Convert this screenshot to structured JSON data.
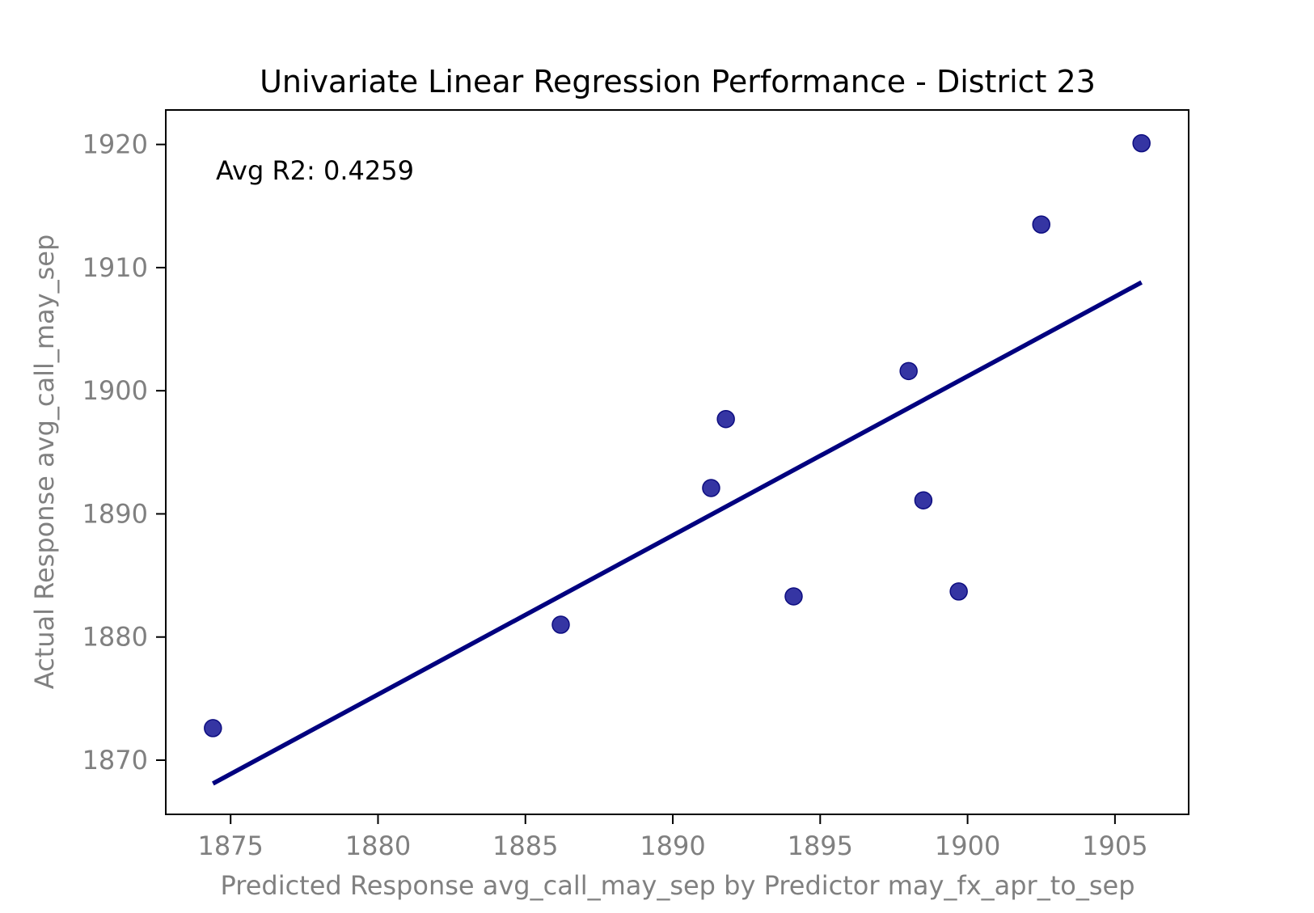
{
  "chart_data": {
    "type": "scatter",
    "title": "Univariate Linear Regression Performance - District 23",
    "xlabel": "Predicted Response avg_call_may_sep by Predictor may_fx_apr_to_sep",
    "ylabel": "Actual Response avg_call_may_sep",
    "annotation": "Avg R2: 0.4259",
    "xlim": [
      1872.8,
      1907.5
    ],
    "ylim": [
      1865.6,
      1922.8
    ],
    "x_ticks": [
      1875,
      1880,
      1885,
      1890,
      1895,
      1900,
      1905
    ],
    "y_ticks": [
      1870,
      1880,
      1890,
      1900,
      1910,
      1920
    ],
    "grid": false,
    "points": {
      "x": [
        1874.4,
        1886.2,
        1891.3,
        1891.8,
        1894.1,
        1898.0,
        1898.5,
        1899.7,
        1902.5,
        1905.9
      ],
      "y": [
        1872.6,
        1881.0,
        1892.1,
        1897.7,
        1883.3,
        1901.6,
        1891.1,
        1883.7,
        1913.5,
        1920.1
      ]
    },
    "fit_line": {
      "x": [
        1874.4,
        1905.9
      ],
      "y": [
        1868.1,
        1908.8
      ]
    },
    "colors": {
      "points": "#1f1f99",
      "points_edge": "#0d0d80",
      "line": "#00007f",
      "axis_text": "#808080",
      "title_text": "#000000"
    }
  }
}
